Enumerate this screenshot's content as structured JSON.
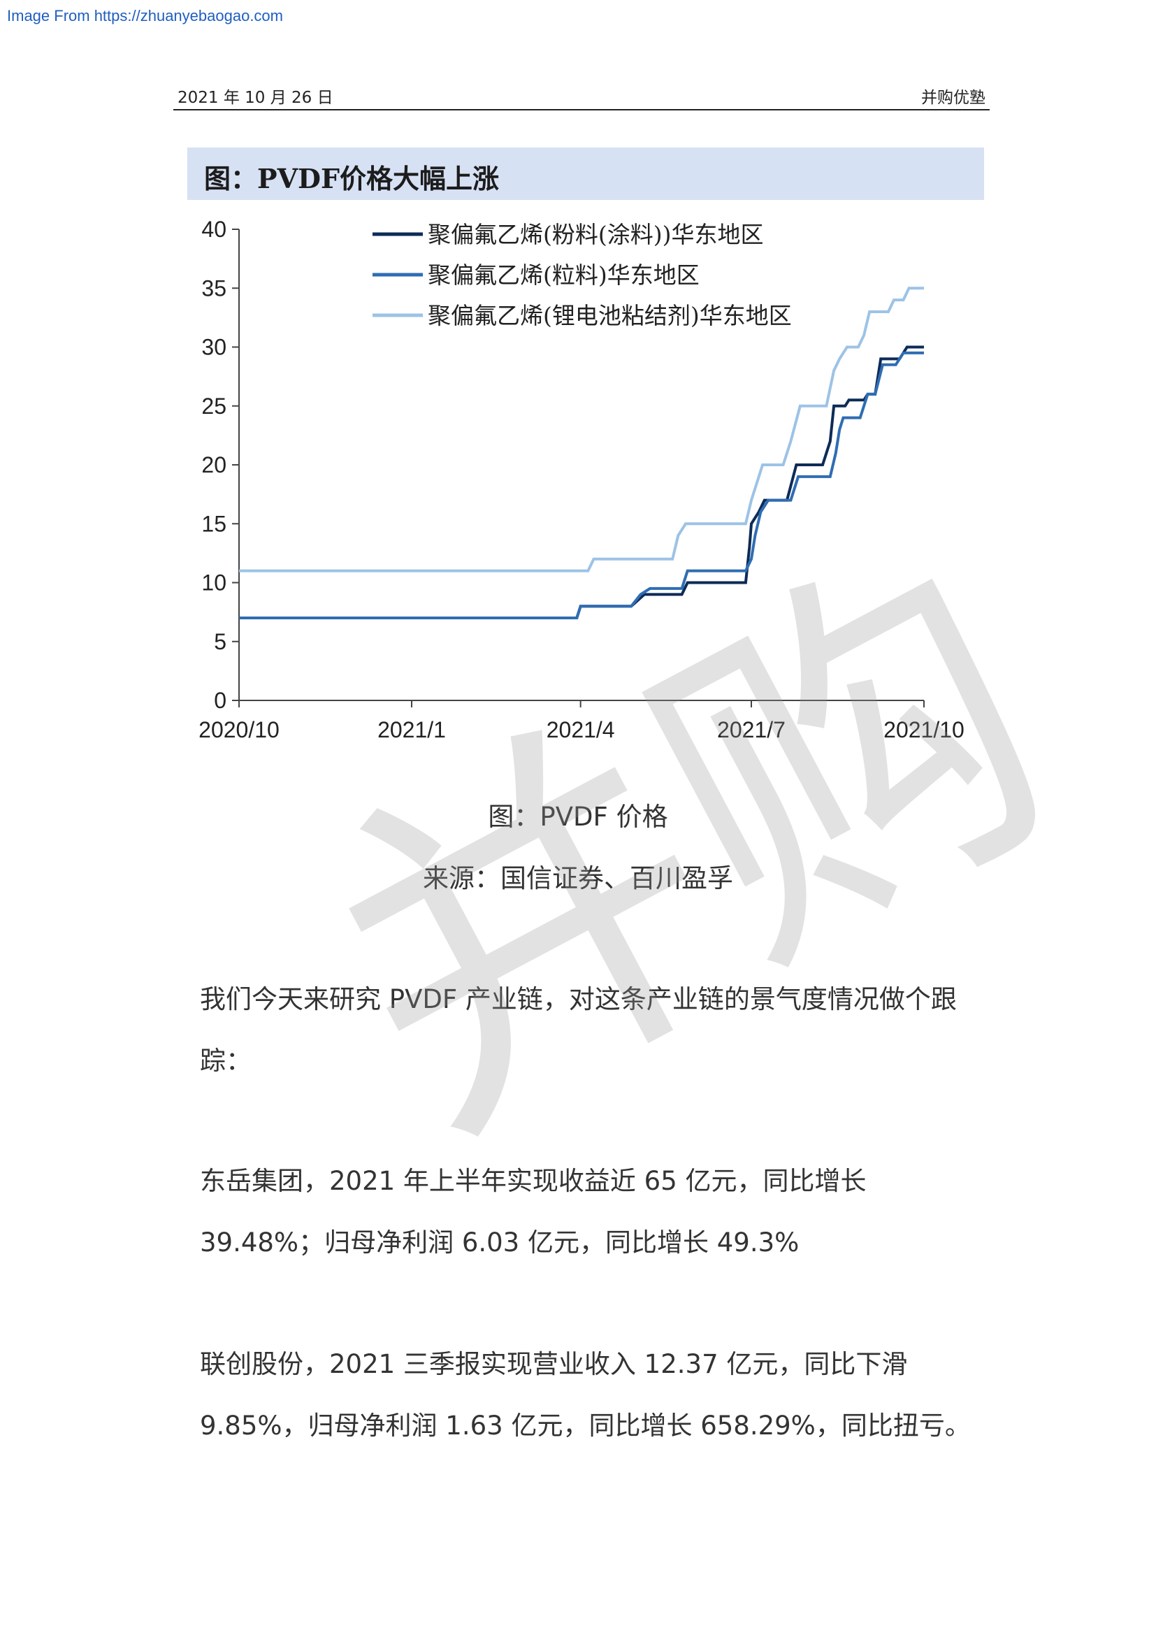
{
  "source_link": "Image From https://zhuanyebaogao.com",
  "header": {
    "date": "2021 年 10 月 26 日",
    "org": "并购优塾"
  },
  "figure_title": "图：PVDF价格大幅上涨",
  "chart_data": {
    "type": "line",
    "title": "",
    "xlabel": "",
    "ylabel": "",
    "ylim": [
      0,
      40
    ],
    "y_ticks": [
      0,
      5,
      10,
      15,
      20,
      25,
      30,
      35,
      40
    ],
    "x_ticks": [
      "2020/10",
      "2021/1",
      "2021/4",
      "2021/7",
      "2021/10"
    ],
    "legend_position": "top",
    "grid": false,
    "series": [
      {
        "name": "聚偏氟乙烯(粉料(涂料))华东地区",
        "color": "#0d2b57",
        "points": [
          [
            "2020/10",
            7
          ],
          [
            "2021/3/30",
            7
          ],
          [
            "2021/4/1",
            8
          ],
          [
            "2021/4/28",
            8
          ],
          [
            "2021/5/5",
            9
          ],
          [
            "2021/5/25",
            9
          ],
          [
            "2021/5/28",
            10
          ],
          [
            "2021/6/28",
            10
          ],
          [
            "2021/6/30",
            13
          ],
          [
            "2021/7/1",
            15
          ],
          [
            "2021/7/5",
            16
          ],
          [
            "2021/7/8",
            17
          ],
          [
            "2021/7/20",
            17
          ],
          [
            "2021/7/25",
            20
          ],
          [
            "2021/8/8",
            20
          ],
          [
            "2021/8/12",
            22
          ],
          [
            "2021/8/14",
            25
          ],
          [
            "2021/8/20",
            25
          ],
          [
            "2021/8/22",
            25.5
          ],
          [
            "2021/8/30",
            25.5
          ],
          [
            "2021/9/1",
            26
          ],
          [
            "2021/9/5",
            26
          ],
          [
            "2021/9/8",
            29
          ],
          [
            "2021/9/18",
            29
          ],
          [
            "2021/9/22",
            30
          ],
          [
            "2021/10/1",
            30
          ]
        ]
      },
      {
        "name": "聚偏氟乙烯(粒料)华东地区",
        "color": "#2f6db3",
        "points": [
          [
            "2020/10",
            7
          ],
          [
            "2021/3/30",
            7
          ],
          [
            "2021/4/1",
            8
          ],
          [
            "2021/4/28",
            8
          ],
          [
            "2021/5/3",
            9
          ],
          [
            "2021/5/8",
            9.5
          ],
          [
            "2021/5/25",
            9.5
          ],
          [
            "2021/5/28",
            11
          ],
          [
            "2021/6/28",
            11
          ],
          [
            "2021/7/1",
            12
          ],
          [
            "2021/7/3",
            14
          ],
          [
            "2021/7/6",
            16
          ],
          [
            "2021/7/10",
            17
          ],
          [
            "2021/7/22",
            17
          ],
          [
            "2021/7/26",
            19
          ],
          [
            "2021/8/12",
            19
          ],
          [
            "2021/8/15",
            21
          ],
          [
            "2021/8/17",
            23
          ],
          [
            "2021/8/19",
            24
          ],
          [
            "2021/8/28",
            24
          ],
          [
            "2021/9/1",
            26
          ],
          [
            "2021/9/5",
            26
          ],
          [
            "2021/9/9",
            28.5
          ],
          [
            "2021/9/16",
            28.5
          ],
          [
            "2021/9/20",
            29.5
          ],
          [
            "2021/10/1",
            29.5
          ]
        ]
      },
      {
        "name": "聚偏氟乙烯(锂电池粘结剂)华东地区",
        "color": "#9dc3e6",
        "points": [
          [
            "2020/10",
            11
          ],
          [
            "2021/4/5",
            11
          ],
          [
            "2021/4/8",
            12
          ],
          [
            "2021/5/20",
            12
          ],
          [
            "2021/5/23",
            14
          ],
          [
            "2021/5/27",
            15
          ],
          [
            "2021/6/28",
            15
          ],
          [
            "2021/7/1",
            17
          ],
          [
            "2021/7/3",
            18
          ],
          [
            "2021/7/7",
            20
          ],
          [
            "2021/7/18",
            20
          ],
          [
            "2021/7/22",
            22
          ],
          [
            "2021/7/27",
            25
          ],
          [
            "2021/8/10",
            25
          ],
          [
            "2021/8/14",
            28
          ],
          [
            "2021/8/17",
            29
          ],
          [
            "2021/8/21",
            30
          ],
          [
            "2021/8/27",
            30
          ],
          [
            "2021/8/30",
            31
          ],
          [
            "2021/9/2",
            33
          ],
          [
            "2021/9/12",
            33
          ],
          [
            "2021/9/15",
            34
          ],
          [
            "2021/9/20",
            34
          ],
          [
            "2021/9/23",
            35
          ],
          [
            "2021/10/1",
            35
          ]
        ]
      }
    ]
  },
  "captions": {
    "figure": "图：PVDF 价格",
    "source": "来源：国信证券、百川盈孚"
  },
  "paragraphs": [
    "我们今天来研究 PVDF 产业链，对这条产业链的景气度情况做个跟踪：",
    "东岳集团，2021 年上半年实现收益近 65 亿元，同比增长 39.48%；归母净利润 6.03 亿元，同比增长 49.3%",
    "联创股份，2021 三季报实现营业收入 12.37 亿元，同比下滑 9.85%，归母净利润 1.63 亿元，同比增长 658.29%，同比扭亏。"
  ],
  "watermark": "并购"
}
